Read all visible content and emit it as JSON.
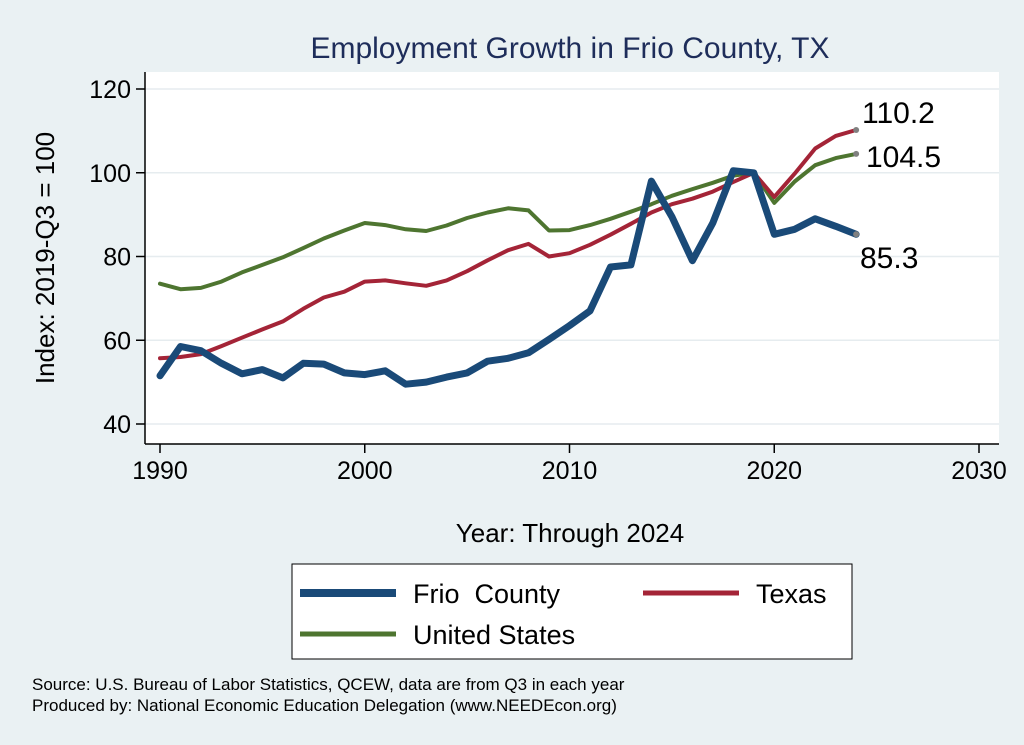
{
  "chart_data": {
    "type": "line",
    "title": "Employment Growth in Frio County, TX",
    "xlabel": "Year: Through 2024",
    "ylabel": "Index: 2019-Q3 = 100",
    "xlim": [
      1990,
      2030
    ],
    "ylim": [
      40,
      120
    ],
    "x_ticks": [
      1990,
      2000,
      2010,
      2020,
      2030
    ],
    "y_ticks": [
      40,
      60,
      80,
      100,
      120
    ],
    "grid": true,
    "legend_placement": "bottom",
    "x": [
      1990,
      1991,
      1992,
      1993,
      1994,
      1995,
      1996,
      1997,
      1998,
      1999,
      2000,
      2001,
      2002,
      2003,
      2004,
      2005,
      2006,
      2007,
      2008,
      2009,
      2010,
      2011,
      2012,
      2013,
      2014,
      2015,
      2016,
      2017,
      2018,
      2019,
      2020,
      2021,
      2022,
      2023,
      2024
    ],
    "series": [
      {
        "name": "Frio  County",
        "color": "#1a4a78",
        "width": 7,
        "end_label": "85.3",
        "values": [
          51.5,
          58.5,
          57.5,
          54.5,
          52,
          53,
          51,
          54.5,
          54.3,
          52.2,
          51.8,
          52.7,
          49.5,
          50,
          51.2,
          52.2,
          55,
          55.7,
          57,
          60.2,
          63.5,
          67,
          77.5,
          78,
          98,
          89.5,
          79,
          88,
          100.5,
          100,
          85.3,
          86.5,
          89,
          87.2,
          85.3
        ]
      },
      {
        "name": "Texas",
        "color": "#a42437",
        "width": 4,
        "end_label": "110.2",
        "values": [
          55.7,
          56,
          56.7,
          58.6,
          60.6,
          62.6,
          64.5,
          67.5,
          70.2,
          71.6,
          74,
          74.3,
          73.6,
          73,
          74.3,
          76.5,
          79.1,
          81.5,
          83,
          80,
          80.8,
          82.8,
          85.2,
          87.8,
          90.5,
          92.5,
          93.8,
          95.5,
          97.8,
          100,
          94.2,
          99.8,
          105.8,
          108.8,
          110.2
        ]
      },
      {
        "name": "United States",
        "color": "#4e7530",
        "width": 4,
        "end_label": "104.5",
        "values": [
          73.5,
          72.2,
          72.5,
          74,
          76.2,
          78,
          79.8,
          82,
          84.3,
          86.2,
          88,
          87.5,
          86.5,
          86.1,
          87.4,
          89.2,
          90.5,
          91.5,
          91,
          86.2,
          86.3,
          87.5,
          89,
          90.7,
          92.5,
          94.5,
          96.1,
          97.6,
          99.3,
          100,
          92.8,
          97.9,
          101.8,
          103.5,
          104.5
        ]
      }
    ]
  },
  "source": {
    "line1": "Source: U.S. Bureau of Labor Statistics, QCEW, data are from Q3 in each year",
    "line2": "Produced by: National Economic Education Delegation (www.NEEDEcon.org)"
  }
}
